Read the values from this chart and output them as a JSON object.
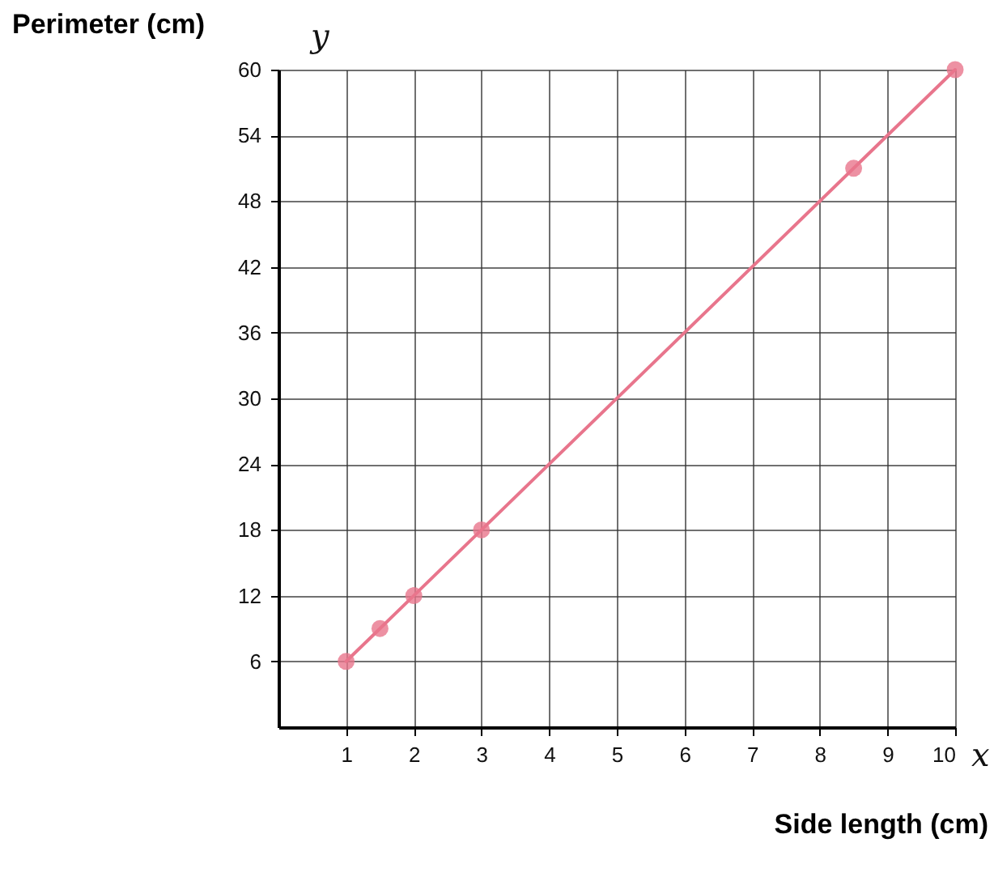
{
  "chart_data": {
    "type": "line",
    "xlabel": "Side length (cm)",
    "ylabel": "Perimeter (cm)",
    "annotations": [
      "y",
      "x"
    ],
    "x": [
      1,
      1.5,
      2,
      3,
      8.5,
      10
    ],
    "series": [
      {
        "color": "#e8758c",
        "values": [
          6,
          9,
          12,
          18,
          51,
          60
        ]
      }
    ],
    "xlim": [
      0,
      10
    ],
    "ylim": [
      0,
      60
    ],
    "xticks": [
      1,
      2,
      3,
      4,
      5,
      6,
      7,
      8,
      9,
      10
    ],
    "yticks": [
      6,
      12,
      18,
      24,
      30,
      36,
      42,
      48,
      54,
      60
    ],
    "grid": true,
    "marker": "circle",
    "line_style": "solid"
  }
}
